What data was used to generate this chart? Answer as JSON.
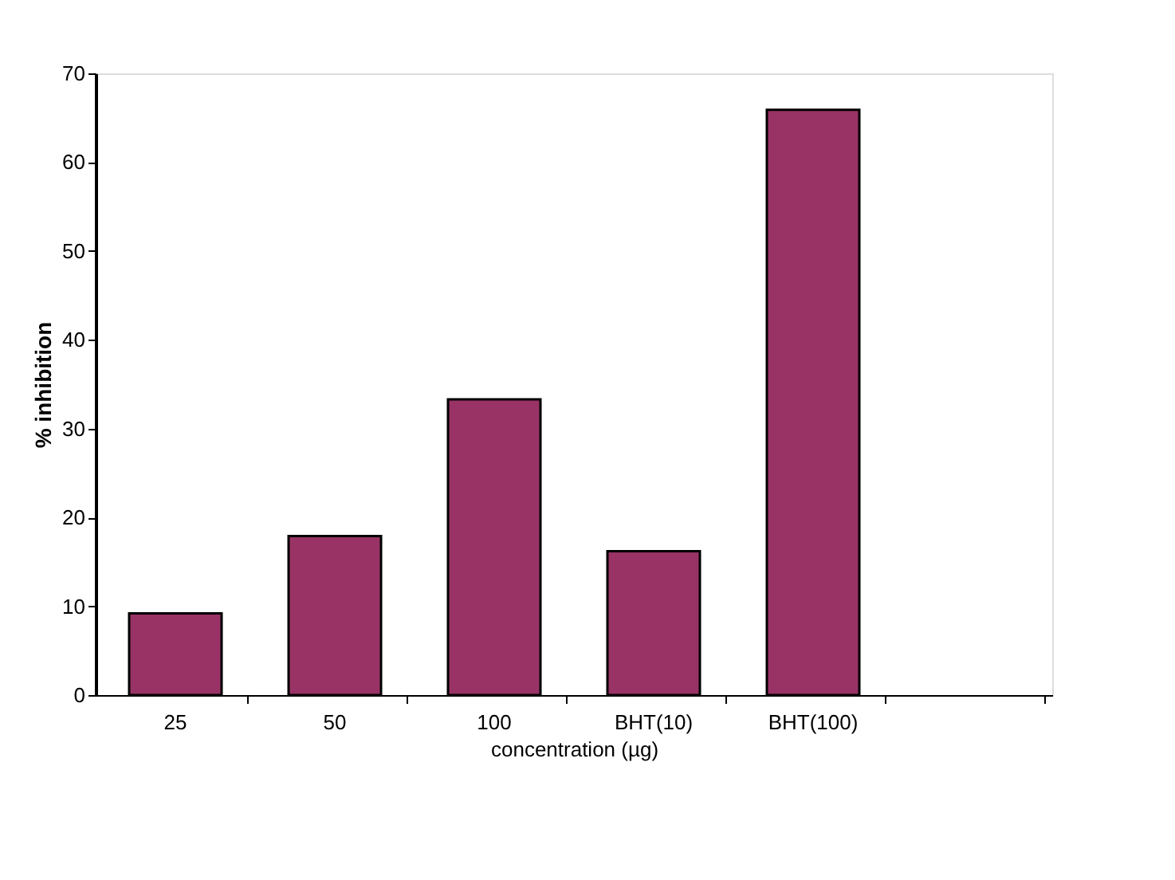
{
  "chart_data": {
    "type": "bar",
    "xlabel": "concentration (µg)",
    "ylabel": "% inhibition",
    "categories": [
      "25",
      "50",
      "100",
      "BHT(10)",
      "BHT(100)",
      null
    ],
    "series": [
      {
        "color": "#993366",
        "values": [
          9.2,
          17.9,
          33.3,
          16.2,
          65.9,
          null
        ]
      }
    ],
    "ylim": [
      0,
      70
    ],
    "yticks": [
      0,
      10,
      20,
      30,
      40,
      50,
      60,
      70
    ],
    "grid": false,
    "legend": false
  }
}
